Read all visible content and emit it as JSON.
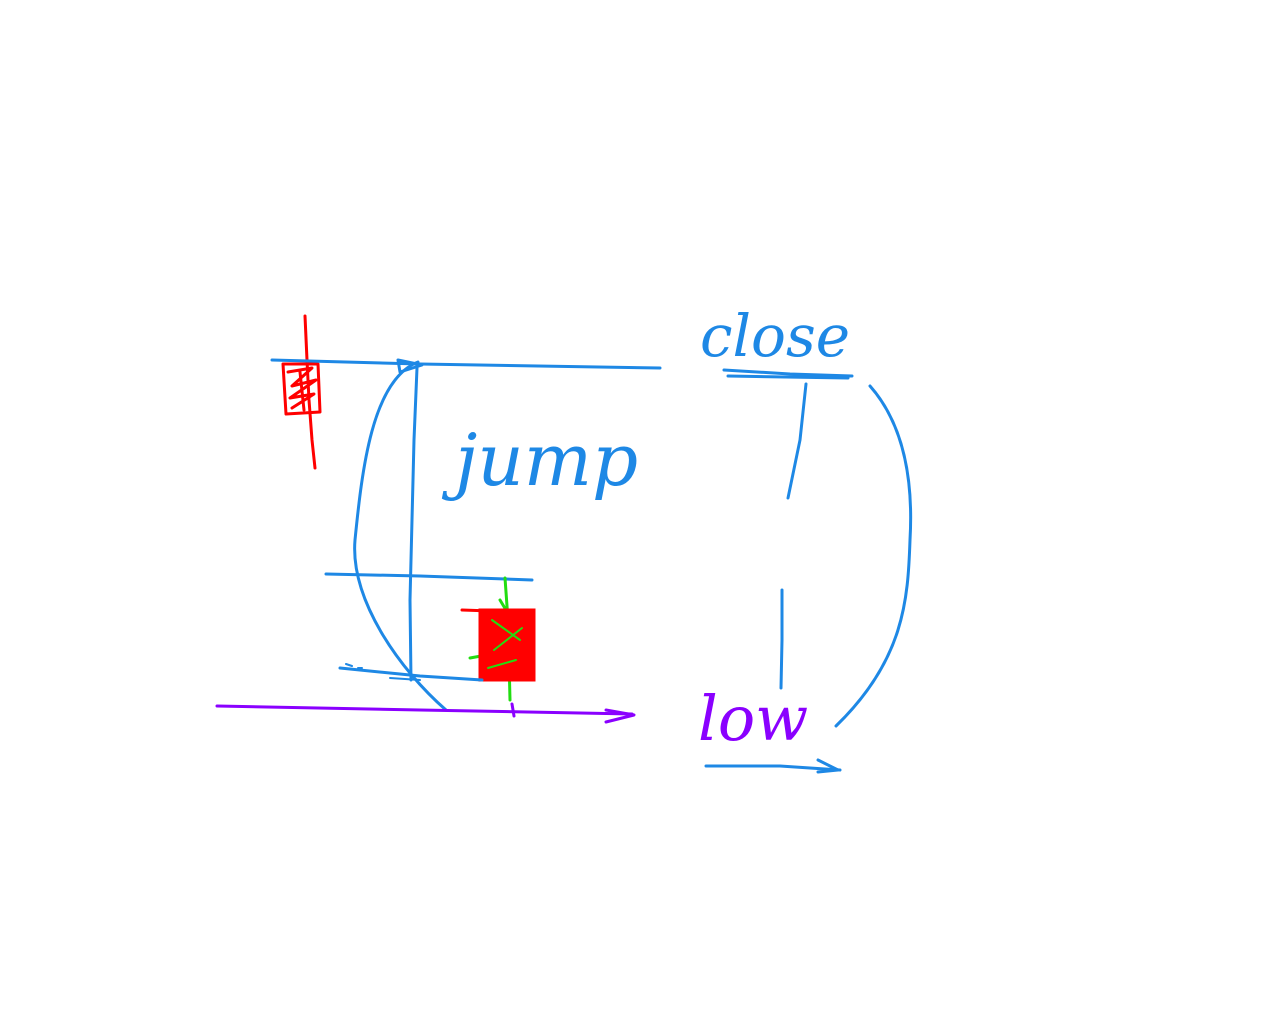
{
  "labels": {
    "jump": "jump",
    "close": "close",
    "low": "low"
  },
  "colors": {
    "blue": "#1e88e5",
    "red": "#ff0000",
    "green": "#22dd11",
    "purple": "#8a00ff",
    "background": "#ffffff"
  }
}
